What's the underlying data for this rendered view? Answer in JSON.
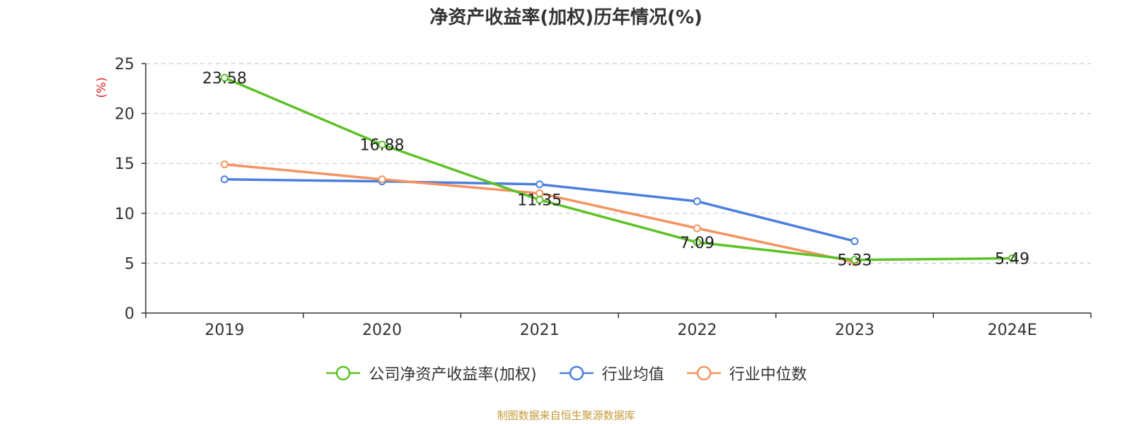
{
  "chart_data": {
    "type": "line",
    "title": "净资产收益率(加权)历年情况(%)",
    "ylabel": "(%)",
    "xlabel": "",
    "categories": [
      "2019",
      "2020",
      "2021",
      "2022",
      "2023",
      "2024E"
    ],
    "ylim": [
      0,
      25
    ],
    "yticks": [
      0,
      5,
      10,
      15,
      20,
      25
    ],
    "grid": "horizontal dashed",
    "legend_position": "bottom",
    "series": [
      {
        "name": "公司净资产收益率(加权)",
        "color": "#5cc226",
        "values": [
          23.58,
          16.88,
          11.35,
          7.09,
          5.33,
          5.49
        ],
        "labels": [
          "23.58",
          "16.88",
          "11.35",
          "7.09",
          "5.33",
          "5.49"
        ]
      },
      {
        "name": "行业均值",
        "color": "#4a7fde",
        "values": [
          13.4,
          13.2,
          12.9,
          11.2,
          7.2,
          null
        ]
      },
      {
        "name": "行业中位数",
        "color": "#f59362",
        "values": [
          14.9,
          13.4,
          12.0,
          8.5,
          5.1,
          null
        ]
      }
    ]
  },
  "source": "制图数据来自恒生聚源数据库"
}
